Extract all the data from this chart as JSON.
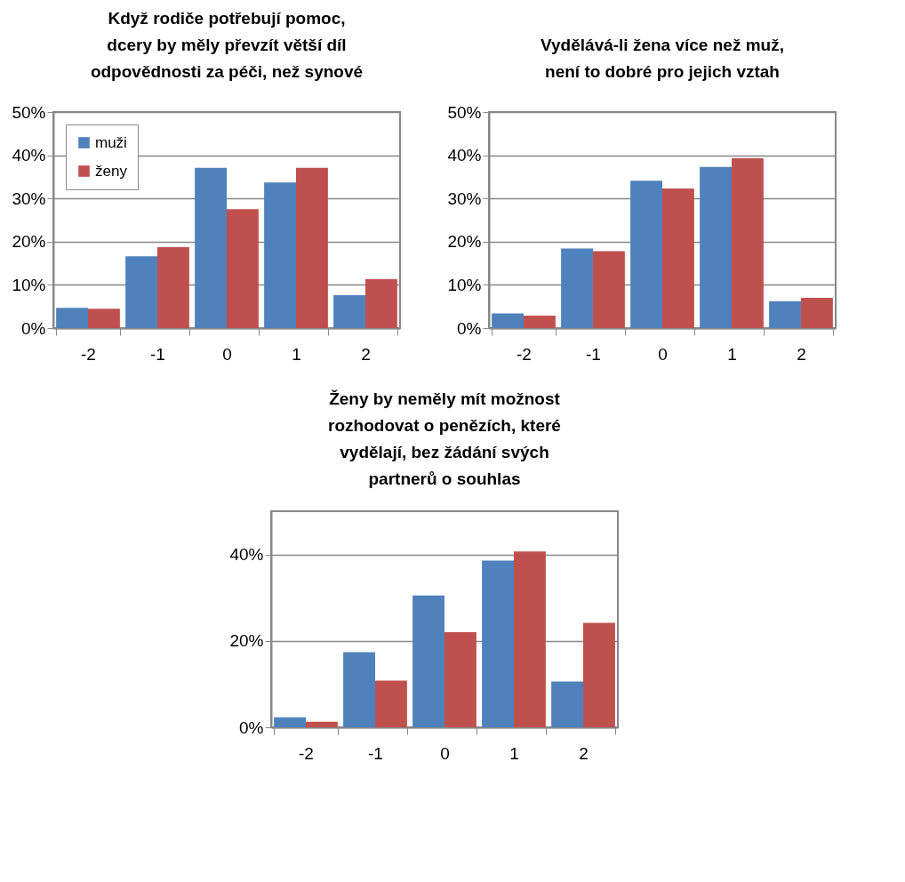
{
  "chart_data": [
    {
      "type": "bar",
      "title": "Když rodiče potřebují pomoc,\ndcery by měly převzít větší díl\nodpovědnosti za péči, než synové",
      "categories": [
        "-2",
        "-1",
        "0",
        "1",
        "2"
      ],
      "series": [
        {
          "name": "muži",
          "color": "#4f81bd",
          "values": [
            4.7,
            16.6,
            37.1,
            33.7,
            7.6
          ]
        },
        {
          "name": "ženy",
          "color": "#c0504d",
          "values": [
            4.5,
            18.7,
            27.5,
            37.1,
            11.3
          ]
        }
      ],
      "ylim": [
        0,
        50
      ],
      "yticks": [
        {
          "value": 0,
          "label": "0%"
        },
        {
          "value": 10,
          "label": "10%"
        },
        {
          "value": 20,
          "label": "20%"
        },
        {
          "value": 30,
          "label": "30%"
        },
        {
          "value": 40,
          "label": "40%"
        },
        {
          "value": 50,
          "label": "50%"
        }
      ],
      "grid": "y",
      "legend": "top left"
    },
    {
      "type": "bar",
      "title": "Vydělává-li žena více než muž,\nnení to dobré pro jejich vztah",
      "categories": [
        "-2",
        "-1",
        "0",
        "1",
        "2"
      ],
      "series": [
        {
          "color": "#4f81bd",
          "values": [
            3.4,
            18.4,
            34.1,
            37.3,
            6.2
          ]
        },
        {
          "color": "#c0504d",
          "values": [
            2.9,
            17.8,
            32.3,
            39.3,
            7.0
          ]
        }
      ],
      "ylim": [
        0,
        50
      ],
      "yticks": [
        {
          "value": 0,
          "label": "0%"
        },
        {
          "value": 10,
          "label": "10%"
        },
        {
          "value": 20,
          "label": "20%"
        },
        {
          "value": 30,
          "label": "30%"
        },
        {
          "value": 40,
          "label": "40%"
        },
        {
          "value": 50,
          "label": "50%"
        }
      ],
      "grid": "y"
    },
    {
      "type": "bar",
      "title": "Ženy by neměly mít možnost\nrozhodovat o penězích, které\nvydělají, bez žádání svých\npartnerů o souhlas",
      "categories": [
        "-2",
        "-1",
        "0",
        "1",
        "2"
      ],
      "series": [
        {
          "color": "#4f81bd",
          "values": [
            2.3,
            17.4,
            30.5,
            38.6,
            10.6
          ]
        },
        {
          "color": "#c0504d",
          "values": [
            1.3,
            10.8,
            22.0,
            40.7,
            24.2
          ]
        }
      ],
      "ylim": [
        0,
        50
      ],
      "yticks": [
        {
          "value": 0,
          "label": "0%"
        },
        {
          "value": 20,
          "label": "20%"
        },
        {
          "value": 40,
          "label": "40%"
        }
      ],
      "grid": "y"
    }
  ]
}
